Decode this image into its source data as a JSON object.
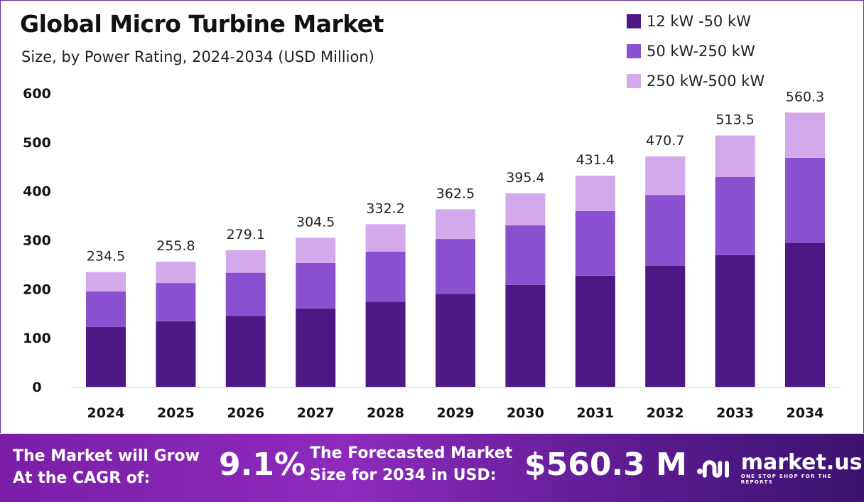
{
  "chart_data": {
    "type": "bar",
    "stacked": true,
    "title": "Global Micro Turbine Market",
    "subtitle": "Size, by Power Rating, 2024-2034 (USD Million)",
    "categories": [
      "2024",
      "2025",
      "2026",
      "2027",
      "2028",
      "2029",
      "2030",
      "2031",
      "2032",
      "2033",
      "2034"
    ],
    "series": [
      {
        "name": "12 kW -50 kW",
        "color": "#4e1784",
        "values": [
          122,
          134,
          145,
          160,
          174,
          190,
          208,
          227,
          247,
          269,
          294
        ]
      },
      {
        "name": "50 kW-250 kW",
        "color": "#8b4fcf",
        "values": [
          73,
          78,
          88,
          93,
          102,
          112,
          122,
          132,
          145,
          160,
          174
        ]
      },
      {
        "name": "250 kW-500 kW",
        "color": "#d4a9ec",
        "values": [
          39.5,
          43.8,
          46.1,
          51.5,
          56.2,
          60.5,
          65.4,
          72.4,
          78.7,
          84.5,
          92.3
        ]
      }
    ],
    "totals": [
      "234.5",
      "255.8",
      "279.1",
      "304.5",
      "332.2",
      "362.5",
      "395.4",
      "431.4",
      "470.7",
      "513.5",
      "560.3"
    ],
    "yticks": [
      "0",
      "100",
      "200",
      "300",
      "400",
      "500",
      "600"
    ],
    "ylim": [
      0,
      600
    ],
    "grid": false,
    "legend_position": "top-right"
  },
  "footer": {
    "cagr_label_1": "The Market will Grow",
    "cagr_label_2": "At the CAGR of:",
    "cagr_value": "9.1%",
    "forecast_label_1": "The Forecasted Market",
    "forecast_label_2": "Size for 2034 in USD:",
    "forecast_value": "$560.3 M",
    "brand": "market.us",
    "brand_tagline": "ONE STOP SHOP FOR THE REPORTS"
  }
}
